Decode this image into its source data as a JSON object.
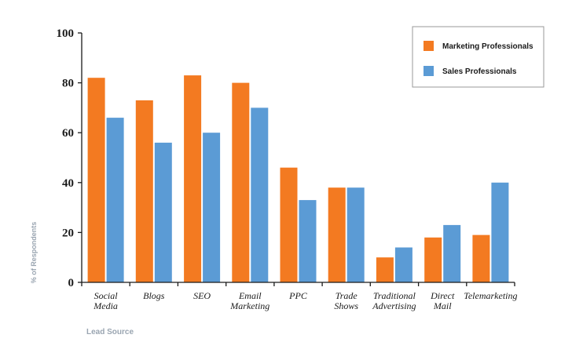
{
  "chart_data": {
    "type": "bar",
    "title": "",
    "xlabel": "Lead Source",
    "ylabel": "% of Respondents",
    "ylim": [
      0,
      100
    ],
    "yticks": [
      0,
      20,
      40,
      60,
      80,
      100
    ],
    "grid": false,
    "legend_position": "top-right",
    "categories": [
      [
        "Social",
        "Media"
      ],
      [
        "Blogs"
      ],
      [
        "SEO"
      ],
      [
        "Email",
        "Marketing"
      ],
      [
        "PPC"
      ],
      [
        "Trade",
        "Shows"
      ],
      [
        "Traditional",
        "Advertising"
      ],
      [
        "Direct",
        "Mail"
      ],
      [
        "Telemarketing"
      ]
    ],
    "series": [
      {
        "name": "Marketing Professionals",
        "color": "#f37a21",
        "values": [
          82,
          73,
          83,
          80,
          46,
          38,
          10,
          18,
          19
        ]
      },
      {
        "name": "Sales Professionals",
        "color": "#5b9bd5",
        "values": [
          66,
          56,
          60,
          70,
          33,
          38,
          14,
          23,
          40
        ]
      }
    ],
    "colors": {
      "axis": "#1a1a1a",
      "axis_label": "#9aa5b1",
      "tick_label": "#1a1a1a",
      "legend_border": "#999999"
    }
  }
}
